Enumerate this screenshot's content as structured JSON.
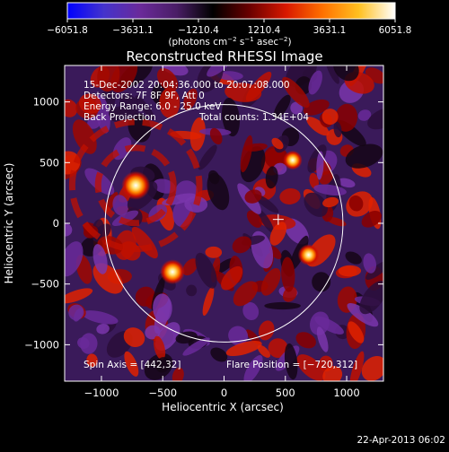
{
  "chart_data": {
    "type": "heatmap",
    "title": "Reconstructed RHESSI Image",
    "xlabel": "Heliocentric X (arcsec)",
    "ylabel": "Heliocentric Y (arcsec)",
    "xlim": [
      -1300,
      1300
    ],
    "ylim": [
      -1300,
      1300
    ],
    "xticks": [
      -1000,
      -500,
      0,
      500,
      1000
    ],
    "yticks": [
      -1000,
      -500,
      0,
      500,
      1000
    ],
    "xtick_labels": [
      "−1000",
      "−500",
      "0",
      "500",
      "1000"
    ],
    "ytick_labels": [
      "−1000",
      "−500",
      "0",
      "500",
      "1000"
    ],
    "colorbar": {
      "min": -6051.8,
      "max": 6051.8,
      "tick_values": [
        -6051.8,
        -3631.1,
        -1210.4,
        1210.4,
        3631.1,
        6051.8
      ],
      "tick_labels": [
        "−6051.8",
        "−3631.1",
        "−1210.4",
        "1210.4",
        "3631.1",
        "6051.8"
      ],
      "unit_prefix": "(photons cm",
      "unit_mid": " s",
      "unit_mid2": " asec",
      "unit_suffix": ")",
      "sup1": "−2",
      "sup2": "−1",
      "sup3": "−2",
      "colors": [
        "#0000ff",
        "#4433cc",
        "#6a2a9a",
        "#4a1e66",
        "#000000",
        "#6a0000",
        "#d81800",
        "#ff7000",
        "#ffc020",
        "#ffffff"
      ]
    },
    "info_lines": [
      "15-Dec-2002 20:04:36.000 to 20:07:08.000",
      "Detectors: 7F 8F 9F, Att 0",
      "Energy Range: 6.0 - 25.0 keV",
      "Back Projection"
    ],
    "total_counts": "Total counts: 1.34E+04",
    "spin_axis": "Spin Axis = [442,32]",
    "flare_position_label": "Flare Position = [−720,312]",
    "solar_limb_radius": 970,
    "spin_axis_xy": [
      442,
      32
    ],
    "sources": [
      {
        "x": -720,
        "y": 312,
        "strength": 6051.8
      },
      {
        "x": -420,
        "y": -400,
        "strength": 4600
      },
      {
        "x": 690,
        "y": -260,
        "strength": 3300
      },
      {
        "x": 560,
        "y": 520,
        "strength": 2500
      }
    ],
    "timestamp": "22-Apr-2013 06:02"
  }
}
